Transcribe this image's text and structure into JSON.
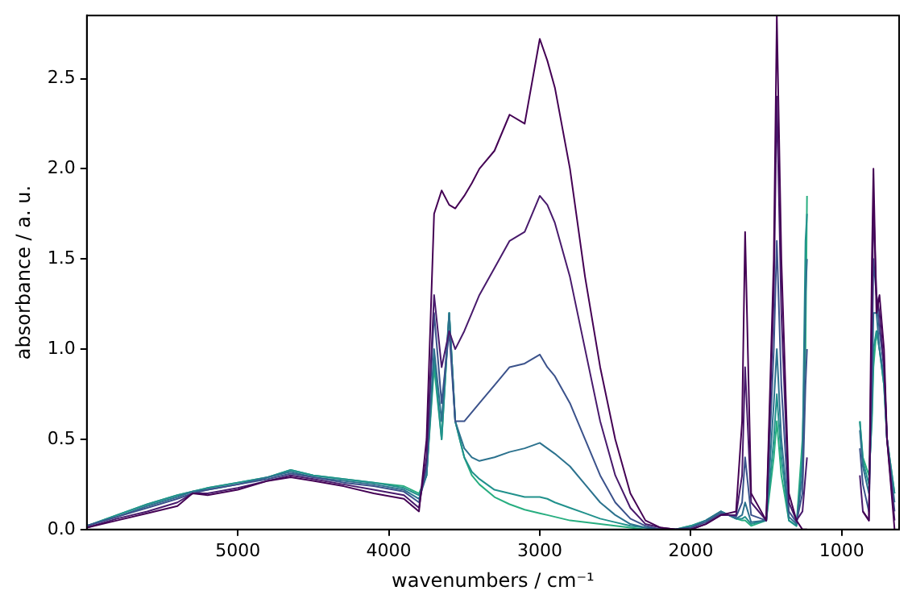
{
  "chart_data": {
    "type": "line",
    "xlabel": "wavenumbers / cm⁻¹",
    "ylabel": "absorbance / a. u.",
    "x": [
      6000,
      5800,
      5600,
      5400,
      5300,
      5200,
      5000,
      4800,
      4650,
      4500,
      4300,
      4100,
      3900,
      3800,
      3750,
      3700,
      3650,
      3600,
      3560,
      3500,
      3450,
      3400,
      3300,
      3200,
      3100,
      3000,
      2950,
      2900,
      2800,
      2700,
      2600,
      2500,
      2400,
      2300,
      2200,
      2100,
      2000,
      1900,
      1800,
      1700,
      1660,
      1640,
      1600,
      1500,
      1450,
      1430,
      1400,
      1350,
      1300,
      1260,
      1240,
      1230,
      1000,
      880,
      860,
      820,
      800,
      790,
      770,
      750,
      720,
      700,
      650
    ],
    "series": [
      {
        "color": "#440154",
        "values": [
          0.01,
          0.05,
          0.09,
          0.13,
          0.2,
          0.19,
          0.22,
          0.27,
          0.29,
          0.27,
          0.24,
          0.2,
          0.17,
          0.1,
          0.5,
          1.75,
          1.88,
          1.8,
          1.78,
          1.85,
          1.92,
          2.0,
          2.1,
          2.3,
          2.25,
          2.72,
          2.6,
          2.45,
          2.0,
          1.4,
          0.9,
          0.5,
          0.2,
          0.05,
          0.01,
          0,
          0,
          0.03,
          0.08,
          0.1,
          0.6,
          1.65,
          0.2,
          0.05,
          1.5,
          2.85,
          1.5,
          0.2,
          0.05,
          0,
          0,
          0,
          null,
          null,
          0.1,
          0.05,
          1.5,
          2.0,
          1.2,
          1.3,
          1.0,
          0.5,
          0
        ]
      },
      {
        "color": "#481a6c",
        "values": [
          0.01,
          0.06,
          0.1,
          0.15,
          0.2,
          0.2,
          0.23,
          0.27,
          0.3,
          0.28,
          0.25,
          0.22,
          0.19,
          0.12,
          0.4,
          1.3,
          0.9,
          1.1,
          1.0,
          1.1,
          1.2,
          1.3,
          1.45,
          1.6,
          1.65,
          1.85,
          1.8,
          1.7,
          1.4,
          1.0,
          0.6,
          0.3,
          0.12,
          0.03,
          0.01,
          0,
          0,
          0.03,
          0.08,
          0.08,
          0.3,
          0.9,
          0.15,
          0.05,
          1.3,
          2.4,
          1.2,
          0.15,
          0.05,
          0.1,
          0.3,
          0.4,
          null,
          0.3,
          0.1,
          0.05,
          1.2,
          1.8,
          1.3,
          1.2,
          0.9,
          0.5,
          0.05
        ]
      },
      {
        "color": "#3b528b",
        "values": [
          0.02,
          0.07,
          0.12,
          0.17,
          0.2,
          0.22,
          0.25,
          0.28,
          0.31,
          0.29,
          0.26,
          0.24,
          0.21,
          0.15,
          0.35,
          1.2,
          0.7,
          1.1,
          0.6,
          0.6,
          0.65,
          0.7,
          0.8,
          0.9,
          0.92,
          0.97,
          0.9,
          0.85,
          0.7,
          0.5,
          0.3,
          0.15,
          0.06,
          0.02,
          0,
          0,
          0.01,
          0.04,
          0.09,
          0.07,
          0.15,
          0.4,
          0.08,
          0.05,
          1.0,
          1.6,
          0.8,
          0.1,
          0.04,
          0.2,
          0.8,
          1.0,
          null,
          0.45,
          0.25,
          0.1,
          0.9,
          1.5,
          1.3,
          1.1,
          0.9,
          0.5,
          0.1
        ]
      },
      {
        "color": "#2c728e",
        "values": [
          0.02,
          0.07,
          0.13,
          0.18,
          0.21,
          0.22,
          0.25,
          0.29,
          0.32,
          0.29,
          0.27,
          0.25,
          0.22,
          0.17,
          0.3,
          1.0,
          0.6,
          1.2,
          0.6,
          0.45,
          0.4,
          0.38,
          0.4,
          0.43,
          0.45,
          0.48,
          0.45,
          0.42,
          0.35,
          0.25,
          0.15,
          0.08,
          0.03,
          0.01,
          0,
          0,
          0.01,
          0.05,
          0.1,
          0.06,
          0.08,
          0.15,
          0.04,
          0.05,
          0.7,
          1.0,
          0.5,
          0.07,
          0.03,
          0.3,
          1.3,
          1.5,
          null,
          0.55,
          0.35,
          0.2,
          0.75,
          1.2,
          1.2,
          1.0,
          0.85,
          0.5,
          0.15
        ]
      },
      {
        "color": "#21918c",
        "values": [
          0.02,
          0.08,
          0.14,
          0.19,
          0.21,
          0.23,
          0.26,
          0.29,
          0.33,
          0.3,
          0.28,
          0.26,
          0.23,
          0.19,
          0.3,
          0.95,
          0.5,
          1.2,
          0.6,
          0.4,
          0.32,
          0.28,
          0.22,
          0.2,
          0.18,
          0.18,
          0.17,
          0.15,
          0.12,
          0.09,
          0.06,
          0.04,
          0.02,
          0.01,
          0,
          0,
          0.02,
          0.05,
          0.1,
          0.06,
          0.06,
          0.07,
          0.03,
          0.05,
          0.5,
          0.75,
          0.4,
          0.05,
          0.02,
          0.4,
          1.6,
          1.75,
          null,
          0.6,
          0.38,
          0.25,
          0.65,
          1.0,
          1.1,
          1.0,
          0.8,
          0.5,
          0.2
        ]
      },
      {
        "color": "#28ae80",
        "values": [
          0.02,
          0.08,
          0.14,
          0.19,
          0.21,
          0.23,
          0.26,
          0.29,
          0.33,
          0.3,
          0.28,
          0.26,
          0.24,
          0.2,
          0.3,
          0.9,
          0.5,
          1.2,
          0.6,
          0.4,
          0.3,
          0.25,
          0.18,
          0.14,
          0.11,
          0.09,
          0.08,
          0.07,
          0.05,
          0.04,
          0.03,
          0.02,
          0.01,
          0,
          0,
          0,
          0.02,
          0.05,
          0.1,
          0.06,
          0.05,
          0.05,
          0.02,
          0.05,
          0.4,
          0.6,
          0.3,
          0.05,
          0.02,
          0.5,
          1.0,
          1.85,
          null,
          0.6,
          0.4,
          0.3,
          0.6,
          0.9,
          1.1,
          1.0,
          0.8,
          0.5,
          0.2
        ]
      }
    ],
    "xlim": [
      6000,
      620
    ],
    "xticks": [
      5000,
      4000,
      3000,
      2000,
      1000
    ],
    "ylim": [
      0,
      2.85
    ],
    "yticks": [
      {
        "value": 0,
        "label": "0.0"
      },
      0.5,
      {
        "value": 1,
        "label": "1.0"
      },
      1.5,
      {
        "value": 2,
        "label": "2.0"
      },
      2.5
    ],
    "grid": false,
    "legend": false,
    "marker": "none",
    "line_style": "solid"
  }
}
